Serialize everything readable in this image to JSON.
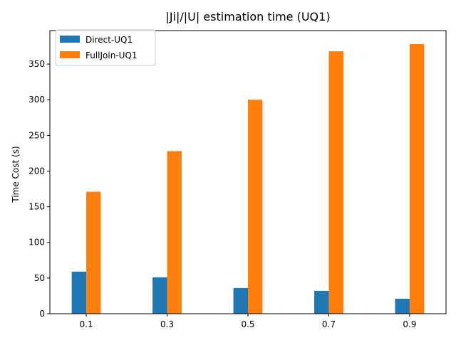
{
  "chart_data": {
    "type": "bar",
    "title": "|Ji|/|U| estimation time (UQ1)",
    "xlabel": "",
    "ylabel": "Time Cost (s)",
    "categories": [
      "0.1",
      "0.3",
      "0.5",
      "0.7",
      "0.9"
    ],
    "series": [
      {
        "name": "Direct-UQ1",
        "color": "#1f77b4",
        "values": [
          59,
          51,
          36,
          32,
          21
        ]
      },
      {
        "name": "FullJoin-UQ1",
        "color": "#ff7f0e",
        "values": [
          171,
          228,
          300,
          368,
          378
        ]
      }
    ],
    "ylim": [
      0,
      397
    ],
    "yticks": [
      0,
      50,
      100,
      150,
      200,
      250,
      300,
      350
    ],
    "grid": false,
    "legend_position": "top-left"
  }
}
